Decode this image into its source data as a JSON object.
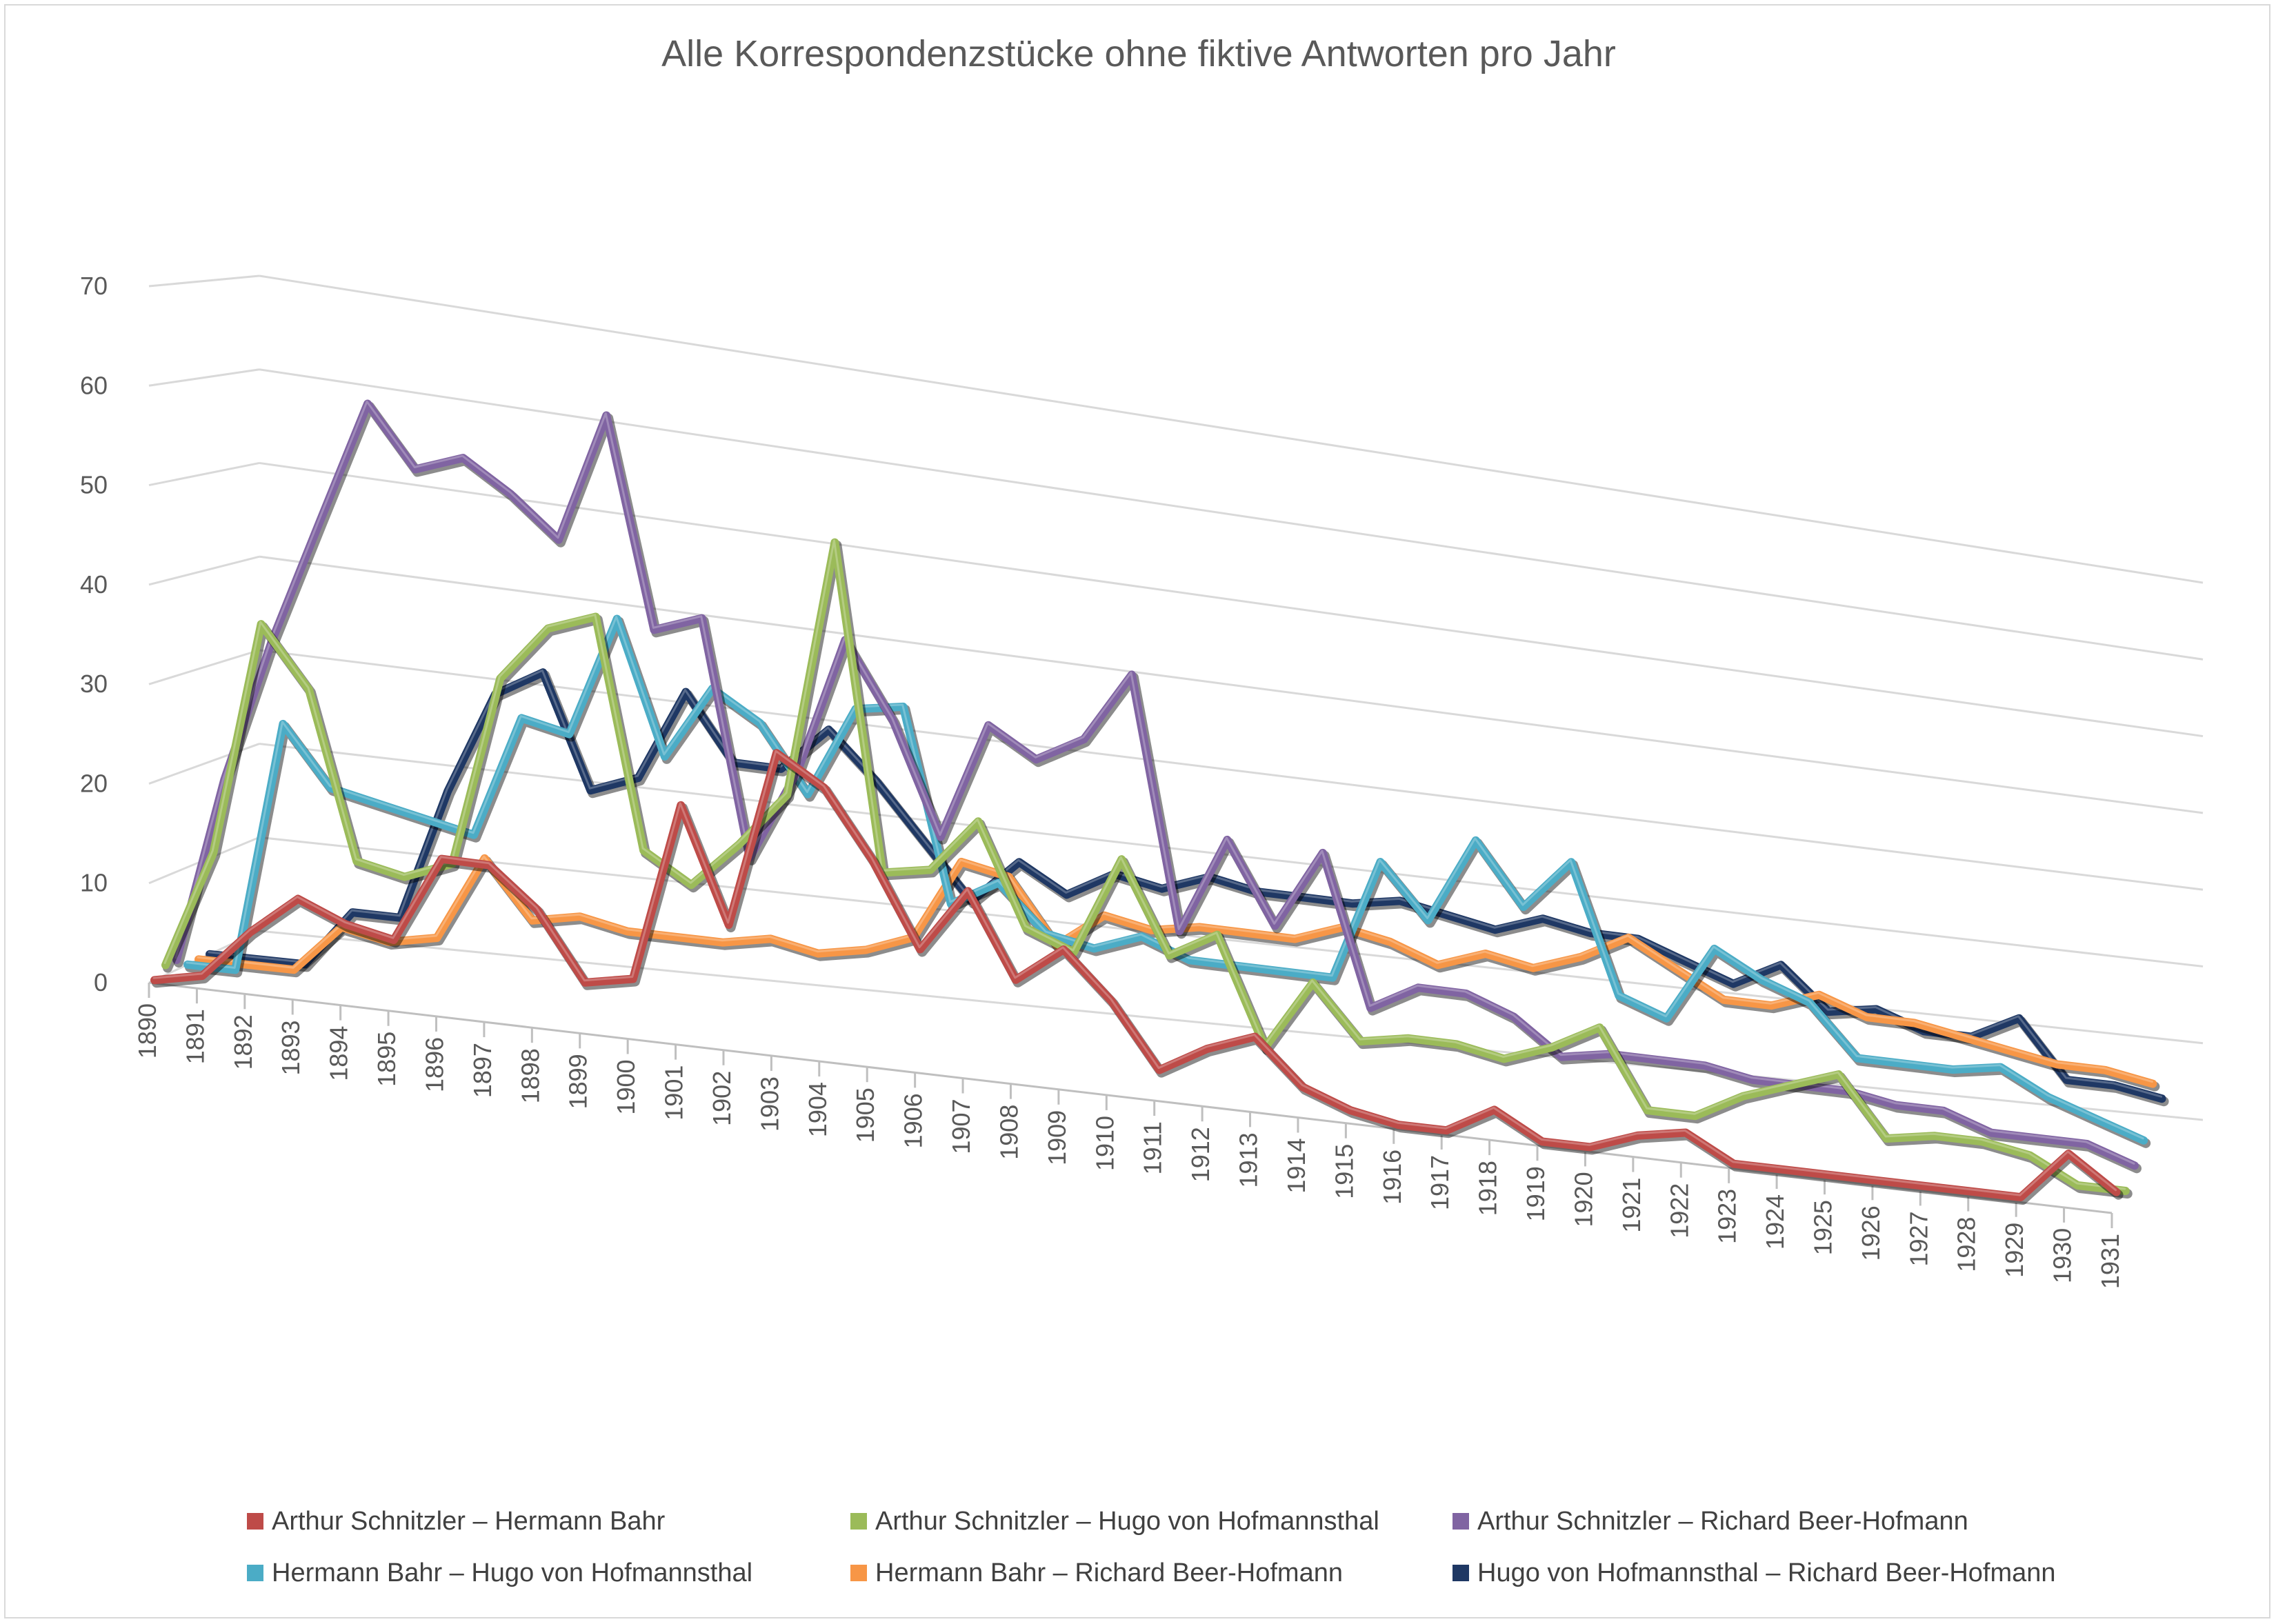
{
  "chart_data": {
    "type": "line",
    "title": "Alle Korrespondenzstücke ohne fiktive Antworten pro Jahr",
    "xlabel": "",
    "ylabel": "",
    "ylim": [
      0,
      70
    ],
    "yticks": [
      0,
      10,
      20,
      30,
      40,
      50,
      60,
      70
    ],
    "grid": true,
    "legend_position": "bottom",
    "categories": [
      "1890",
      "1891",
      "1892",
      "1893",
      "1894",
      "1895",
      "1896",
      "1897",
      "1898",
      "1899",
      "1900",
      "1901",
      "1902",
      "1903",
      "1904",
      "1905",
      "1906",
      "1907",
      "1908",
      "1909",
      "1910",
      "1911",
      "1912",
      "1913",
      "1914",
      "1915",
      "1916",
      "1917",
      "1918",
      "1919",
      "1920",
      "1921",
      "1922",
      "1923",
      "1924",
      "1925",
      "1926",
      "1927",
      "1928",
      "1929",
      "1930",
      "1931"
    ],
    "series": [
      {
        "name": "Arthur Schnitzler – Hermann Bahr",
        "color": "#be4b48",
        "values": [
          0,
          1,
          6,
          10,
          8,
          7,
          16,
          16,
          12,
          5,
          6,
          25,
          13,
          32,
          29,
          22,
          13,
          20,
          11,
          15,
          10,
          3,
          6,
          8,
          3,
          1,
          0,
          0,
          3,
          0,
          0,
          2,
          3,
          0,
          0,
          0,
          0,
          0,
          0,
          0,
          6,
          2
        ]
      },
      {
        "name": "Arthur Schnitzler – Hugo von Hofmannsthal",
        "color": "#9bbb59",
        "values": [
          1,
          13,
          37,
          31,
          14,
          13,
          15,
          35,
          41,
          43,
          19,
          16,
          21,
          27,
          55,
          20,
          21,
          27,
          16,
          14,
          25,
          15,
          18,
          6,
          14,
          8,
          9,
          9,
          8,
          10,
          13,
          4,
          4,
          7,
          9,
          11,
          4,
          5,
          5,
          4,
          1,
          1
        ]
      },
      {
        "name": "Arthur Schnitzler – Richard Beer-Hofmann",
        "color": "#8064a2",
        "values": [
          1,
          20,
          35,
          48,
          61,
          55,
          57,
          54,
          50,
          64,
          42,
          44,
          19,
          29,
          44,
          36,
          24,
          37,
          34,
          37,
          45,
          17,
          28,
          19,
          28,
          11,
          14,
          14,
          12,
          8,
          9,
          9,
          9,
          8,
          8,
          8,
          7,
          7,
          5,
          5,
          5,
          3
        ]
      },
      {
        "name": "Hermann Bahr – Hugo von Hofmannsthal",
        "color": "#4bacc6",
        "values": [
          0,
          0,
          26,
          20,
          19,
          18,
          17,
          30,
          29,
          42,
          28,
          36,
          33,
          26,
          36,
          37,
          16,
          19,
          14,
          13,
          15,
          13,
          13,
          13,
          13,
          27,
          21,
          31,
          24,
          30,
          15,
          13,
          22,
          19,
          17,
          11,
          11,
          11,
          12,
          9,
          7,
          5
        ]
      },
      {
        "name": "Hermann Bahr – Richard Beer-Hofmann",
        "color": "#f79646",
        "values": [
          0,
          0,
          0,
          5,
          4,
          5,
          14,
          8,
          9,
          8,
          8,
          8,
          9,
          8,
          9,
          11,
          20,
          19,
          12,
          16,
          15,
          16,
          16,
          16,
          18,
          17,
          15,
          17,
          16,
          18,
          21,
          18,
          15,
          15,
          17,
          15,
          15,
          14,
          13,
          12,
          12,
          11
        ]
      },
      {
        "name": "Hugo von Hofmannsthal – Richard Beer-Hofmann",
        "color": "#1f3864",
        "values": [
          0,
          0,
          0,
          6,
          6,
          20,
          31,
          34,
          22,
          24,
          34,
          27,
          27,
          32,
          27,
          21,
          15,
          20,
          17,
          20,
          19,
          21,
          20,
          20,
          20,
          21,
          20,
          19,
          21,
          20,
          20,
          18,
          16,
          19,
          14,
          15,
          13,
          13,
          16,
          9,
          9,
          8
        ]
      }
    ]
  }
}
